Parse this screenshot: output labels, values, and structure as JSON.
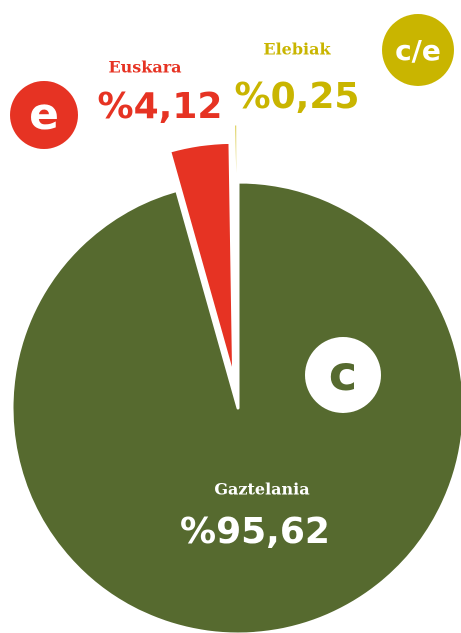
{
  "chart_data": {
    "type": "pie",
    "categories": [
      "Gaztelania",
      "Euskara",
      "Elebiak"
    ],
    "values": [
      95.62,
      4.12,
      0.25
    ],
    "value_labels": [
      "%95,62",
      "%4,12",
      "%0,25"
    ],
    "colors": [
      "#566a2f",
      "#e63323",
      "#c9b500"
    ],
    "icons": [
      "c",
      "e",
      "c/e"
    ]
  }
}
